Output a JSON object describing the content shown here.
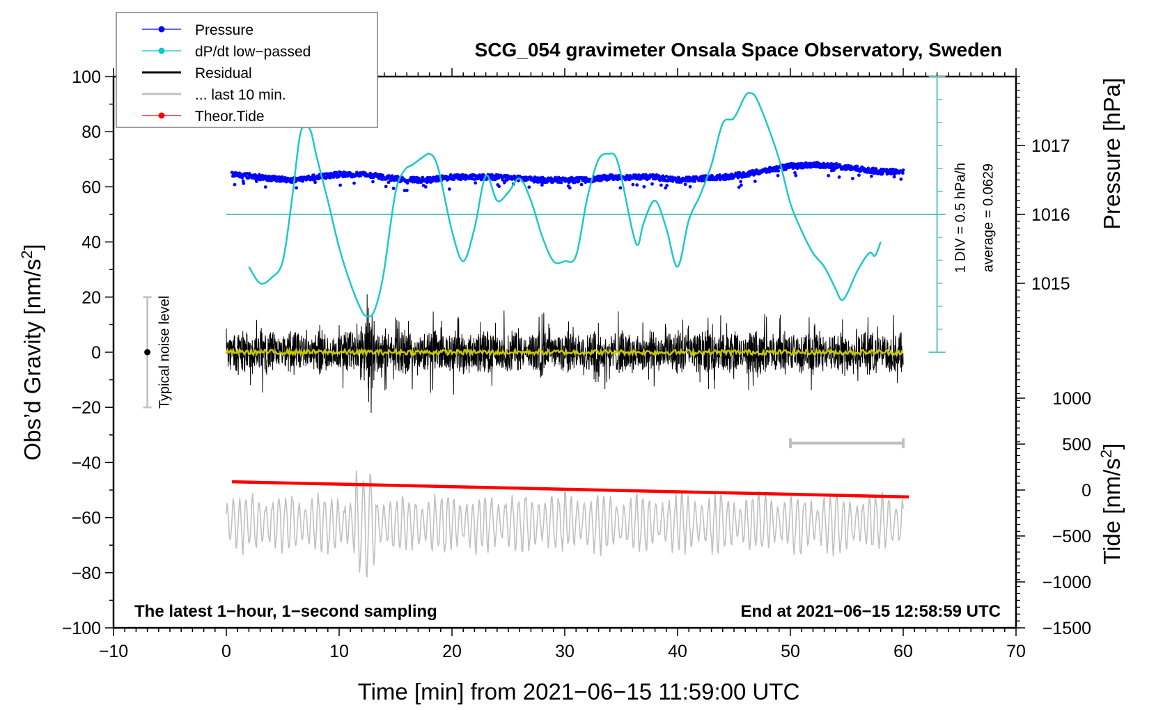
{
  "chart_data": {
    "type": "line",
    "title": "SCG_054 gravimeter Onsala Space Observatory, Sweden",
    "xlabel": "Time [min] from 2021−06−15 11:59:00 UTC",
    "ylabel": "Obs’d Gravity [nm/s²]",
    "ylabel_parts": {
      "main": "Obs’d Gravity [nm/s",
      "sup": "2",
      "end": "]"
    },
    "xlim": [
      -10,
      70
    ],
    "ylim": [
      -100,
      100
    ],
    "xticks": [
      -10,
      0,
      10,
      20,
      30,
      40,
      50,
      60,
      70
    ],
    "xtick_labels": [
      "−10",
      "0",
      "10",
      "20",
      "30",
      "40",
      "50",
      "60",
      "70"
    ],
    "yticks": [
      -100,
      -80,
      -60,
      -40,
      -20,
      0,
      20,
      40,
      60,
      80,
      100
    ],
    "ytick_labels": [
      "−100",
      "−80",
      "−60",
      "−40",
      "−20",
      "0",
      "20",
      "40",
      "60",
      "80",
      "100"
    ],
    "right_axes": [
      {
        "name": "pressure",
        "label": "Pressure [hPa]",
        "ticks": [
          1015,
          1016,
          1017
        ],
        "tick_labels": [
          "1015",
          "1016",
          "1017"
        ],
        "map": {
          "value_at_gravity_50": 1016,
          "gravity_per_unit": 25
        }
      },
      {
        "name": "tide",
        "label_parts": {
          "main": "Tide [nm/s",
          "sup": "2",
          "end": "]"
        },
        "ticks": [
          -1500,
          -1000,
          -500,
          0,
          500,
          1000
        ],
        "tick_labels": [
          "−1500",
          "−1000",
          "−500",
          "0",
          "500",
          "1000"
        ],
        "map": {
          "value_at_gravity_minus50": 0,
          "gravity_per_unit": 0.03333
        }
      }
    ],
    "legend": {
      "position": "top-left",
      "entries": [
        {
          "label": "Pressure",
          "color": "#0000ff",
          "marker": true
        },
        {
          "label": "dP/dt low−passed",
          "color": "#00c8c8",
          "marker": true
        },
        {
          "label": "Residual",
          "color": "#000000",
          "marker": false
        },
        {
          "label": "... last 10 min.",
          "color": "#c0c0c0",
          "marker": false
        },
        {
          "label": "Theor.Tide",
          "color": "#ff0000",
          "marker": true
        }
      ]
    },
    "annotations": {
      "dpdt_scale": "1 DIV = 0.5 hPa/h",
      "dpdt_average": "average = 0.0629",
      "noise_label": "Typical noise level",
      "noise_level": {
        "x": -7,
        "center": 0,
        "min": -20,
        "max": 20
      },
      "bottom_left": "The latest 1−hour, 1−second sampling",
      "bottom_right": "End at 2021−06−15 12:58:59 UTC",
      "ten_min_bar": {
        "x_start": 50,
        "x_end": 60,
        "y": -33
      }
    },
    "dpdt_axis": {
      "x": 63,
      "y_zero": 50,
      "y_min": 0,
      "y_max": 100,
      "div": 8.33
    },
    "series": [
      {
        "name": "dP/dt low-passed",
        "color": "#1ec8c8",
        "x": [
          2,
          3,
          4,
          5,
          5.8,
          6.5,
          7,
          7.5,
          8,
          9,
          10,
          11,
          12,
          12.5,
          13,
          13.5,
          14,
          15,
          15.8,
          16.5,
          17.5,
          18,
          18.5,
          19,
          20,
          21,
          22,
          23,
          24,
          25,
          26,
          27,
          28,
          29,
          30,
          31,
          32,
          33,
          34,
          34.5,
          35,
          36,
          36.5,
          37,
          38,
          39,
          40,
          41,
          42,
          43,
          44,
          45,
          46,
          46.5,
          47,
          48,
          49,
          50,
          51,
          52,
          53,
          54,
          54.5,
          55,
          56,
          57,
          57.5,
          58
        ],
        "values": [
          31,
          25,
          27,
          33,
          55,
          78,
          82,
          80,
          71,
          55,
          38,
          25,
          15,
          13,
          14,
          20,
          30,
          58,
          66,
          68,
          71,
          72,
          70,
          63,
          44,
          33,
          45,
          64,
          55,
          58,
          63,
          55,
          42,
          33,
          33,
          35,
          56,
          70,
          72,
          71,
          64,
          44,
          39,
          47,
          55,
          45,
          31,
          48,
          57,
          68,
          83,
          85,
          93,
          94,
          92,
          82,
          70,
          54,
          44,
          36,
          31,
          23,
          19,
          21,
          30,
          36,
          35,
          40
        ]
      },
      {
        "name": "Pressure",
        "color": "#0000ff",
        "x": [
          0.5,
          2,
          4,
          6,
          8,
          10,
          12,
          14,
          16,
          18,
          20,
          22,
          24,
          26,
          28,
          30,
          32,
          34,
          36,
          38,
          40,
          42,
          44,
          46,
          48,
          50,
          52,
          54,
          56,
          58,
          60
        ],
        "values": [
          64.5,
          64,
          63,
          62.5,
          63.5,
          64.5,
          64.5,
          63.5,
          62.5,
          62.5,
          63.5,
          63.5,
          63.5,
          63,
          62.5,
          62.5,
          62.5,
          63.5,
          63.5,
          63.5,
          62.5,
          63,
          63.5,
          64.5,
          66,
          67.5,
          68,
          67.5,
          66.5,
          65.5,
          65.5
        ]
      },
      {
        "name": "Residual",
        "color": "#000000",
        "x_range": [
          0,
          60
        ],
        "amplitude_typ": 8,
        "max": 21,
        "min": -22,
        "mean": 0
      },
      {
        "name": "Residual smoothed",
        "color": "#c8c800",
        "x_range": [
          0,
          60
        ],
        "values_mean": 0
      },
      {
        "name": "last 10 min.",
        "color": "#c0c0c0",
        "x_range": [
          0,
          60
        ],
        "center": -62,
        "amplitude_typ": 9,
        "max": -43,
        "min": -83
      },
      {
        "name": "Theor.Tide",
        "color": "#ff0000",
        "x": [
          0.5,
          60.5
        ],
        "values": [
          -47,
          -52.5
        ]
      }
    ]
  }
}
